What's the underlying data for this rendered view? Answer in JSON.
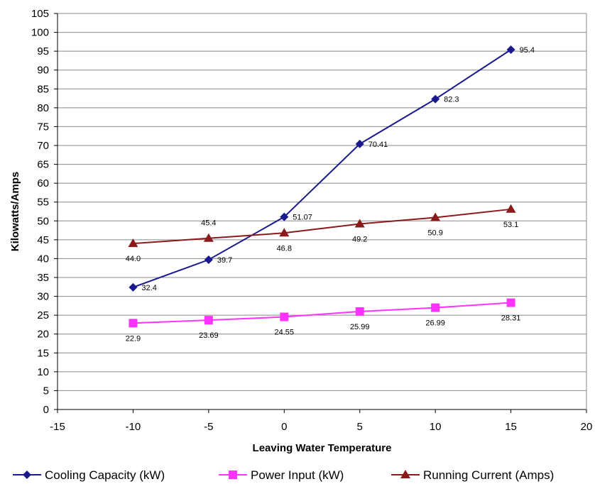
{
  "chart_data": {
    "type": "line",
    "title": "",
    "xlabel": "Leaving Water Temperature",
    "ylabel": "Kilowatts/Amps",
    "xlim": [
      -15,
      20
    ],
    "ylim": [
      0,
      105
    ],
    "x_ticks": [
      "-15",
      "-10",
      "-5",
      "0",
      "5",
      "10",
      "15",
      "20"
    ],
    "y_ticks": [
      "0",
      "5",
      "10",
      "15",
      "20",
      "25",
      "30",
      "35",
      "40",
      "45",
      "50",
      "55",
      "60",
      "65",
      "70",
      "75",
      "80",
      "85",
      "90",
      "95",
      "100",
      "105"
    ],
    "grid": "horizontal",
    "legend_position": "bottom",
    "x": [
      -10,
      -5,
      0,
      5,
      10,
      15
    ],
    "series": [
      {
        "name": "Cooling Capacity (kW)",
        "color": "#1a1a8c",
        "marker": "diamond",
        "values": [
          32.4,
          39.7,
          51.07,
          70.41,
          82.3,
          95.4
        ],
        "labels": [
          "32.4",
          "39.7",
          "51.07",
          "70.41",
          "82.3",
          "95.4"
        ]
      },
      {
        "name": "Power Input (kW)",
        "color": "#ff33ff",
        "marker": "square",
        "values": [
          22.9,
          23.69,
          24.55,
          25.99,
          26.99,
          28.31
        ],
        "labels": [
          "22.9",
          "23.69",
          "24.55",
          "25.99",
          "26.99",
          "28.31"
        ]
      },
      {
        "name": "Running Current (Amps)",
        "color": "#8b1a1a",
        "marker": "triangle",
        "values": [
          44.0,
          45.4,
          46.8,
          49.2,
          50.9,
          53.1
        ],
        "labels": [
          "44.0",
          "45.4",
          "46.8",
          "49.2",
          "50.9",
          "53.1"
        ]
      }
    ]
  }
}
